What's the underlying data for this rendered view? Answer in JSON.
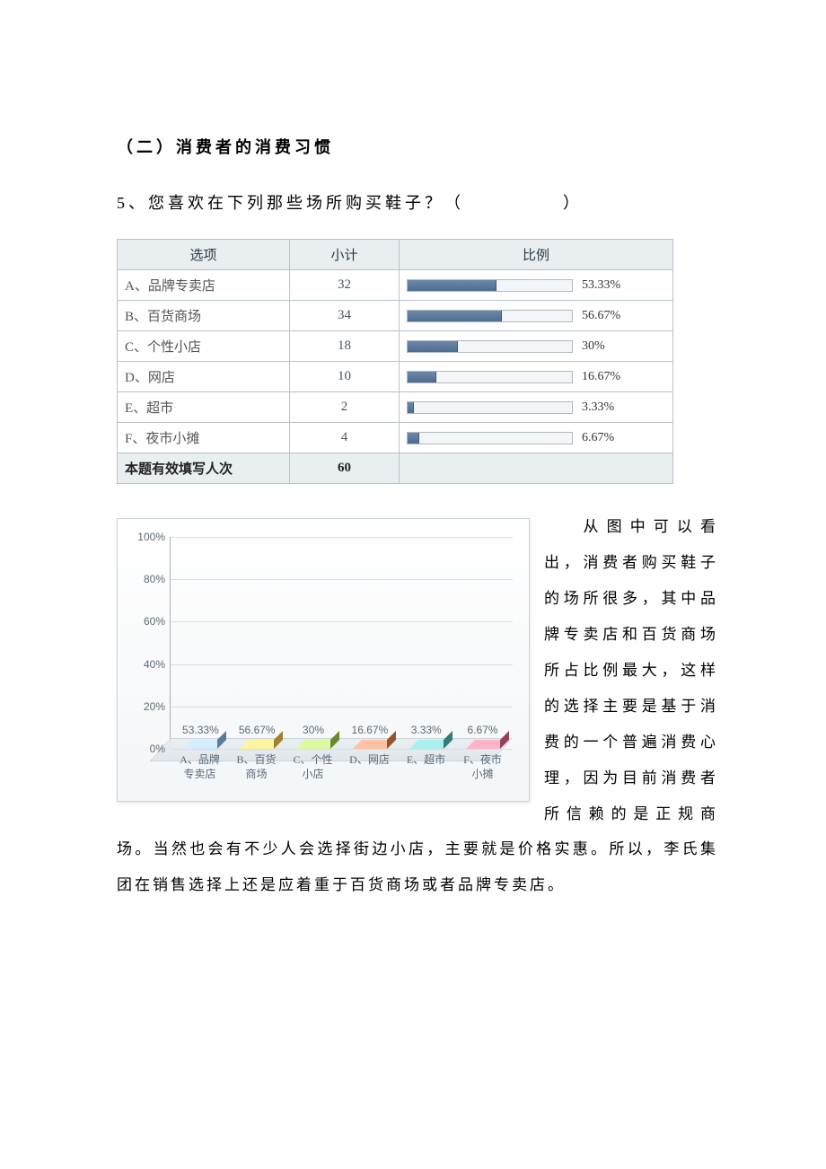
{
  "section_title": "（二）消费者的消费习惯",
  "question": "5、您喜欢在下列那些场所购买鞋子？（　　　　　）",
  "table": {
    "headers": {
      "option": "选项",
      "count": "小计",
      "ratio": "比例"
    },
    "rows": [
      {
        "option": "A、品牌专卖店",
        "count": "32",
        "pct": 53.33,
        "pct_text": "53.33%"
      },
      {
        "option": "B、百货商场",
        "count": "34",
        "pct": 56.67,
        "pct_text": "56.67%"
      },
      {
        "option": "C、个性小店",
        "count": "18",
        "pct": 30.0,
        "pct_text": "30%"
      },
      {
        "option": "D、网店",
        "count": "10",
        "pct": 16.67,
        "pct_text": "16.67%"
      },
      {
        "option": "E、超市",
        "count": "2",
        "pct": 3.33,
        "pct_text": "3.33%"
      },
      {
        "option": "F、夜市小摊",
        "count": "4",
        "pct": 6.67,
        "pct_text": "6.67%"
      }
    ],
    "footer_label": "本题有效填写人次",
    "footer_count": "60",
    "bar_track_color": "#f3f6f8",
    "bar_fill_color": "#56759b",
    "border_color": "#b8c2c9",
    "header_bg": "#e9eef1"
  },
  "chart": {
    "type": "bar",
    "y_ticks": [
      0,
      20,
      40,
      60,
      80,
      100
    ],
    "y_tick_labels": [
      "0%",
      "20%",
      "40%",
      "60%",
      "80%",
      "100%"
    ],
    "ylim": [
      0,
      100
    ],
    "background": "#ffffff",
    "border_color": "#c9d2d9",
    "grid_color": "#d7dee3",
    "axis_color": "#a8b2ba",
    "label_fontsize": 12,
    "bars": [
      {
        "label_line1": "A、品牌",
        "label_line2": "专卖店",
        "value": 53.33,
        "value_text": "53.33%",
        "color": "#8fb0d7",
        "top_color": "#b7cfe9",
        "side_color": "#6f93bf"
      },
      {
        "label_line1": "B、百货",
        "label_line2": "商场",
        "value": 56.67,
        "value_text": "56.67%",
        "color": "#e1b94e",
        "top_color": "#f0d588",
        "side_color": "#c79f34"
      },
      {
        "label_line1": "C、个性",
        "label_line2": "小店",
        "value": 30.0,
        "value_text": "30%",
        "color": "#9fc556",
        "top_color": "#bfda8a",
        "side_color": "#7fa63b"
      },
      {
        "label_line1": "D、网店",
        "label_line2": "",
        "value": 16.67,
        "value_text": "16.67%",
        "color": "#d67f5a",
        "top_color": "#e7a98d",
        "side_color": "#b8643f"
      },
      {
        "label_line1": "E、超市",
        "label_line2": "",
        "value": 3.33,
        "value_text": "3.33%",
        "color": "#5fb7b7",
        "top_color": "#94d1d1",
        "side_color": "#419595"
      },
      {
        "label_line1": "F、夜市",
        "label_line2": "小摊",
        "value": 6.67,
        "value_text": "6.67%",
        "color": "#d96b85",
        "top_color": "#e99cae",
        "side_color": "#b84e68"
      }
    ]
  },
  "body_text": "从图中可以看出，消费者购买鞋子的场所很多，其中品牌专卖店和百货商场所占比例最大，这样的选择主要是基于消费的一个普遍消费心理，因为目前消费者所信赖的是正规商场。当然也会有不少人会选择街边小店，主要就是价格实惠。所以，李氏集团在销售选择上还是应着重于百货商场或者品牌专卖店。"
}
